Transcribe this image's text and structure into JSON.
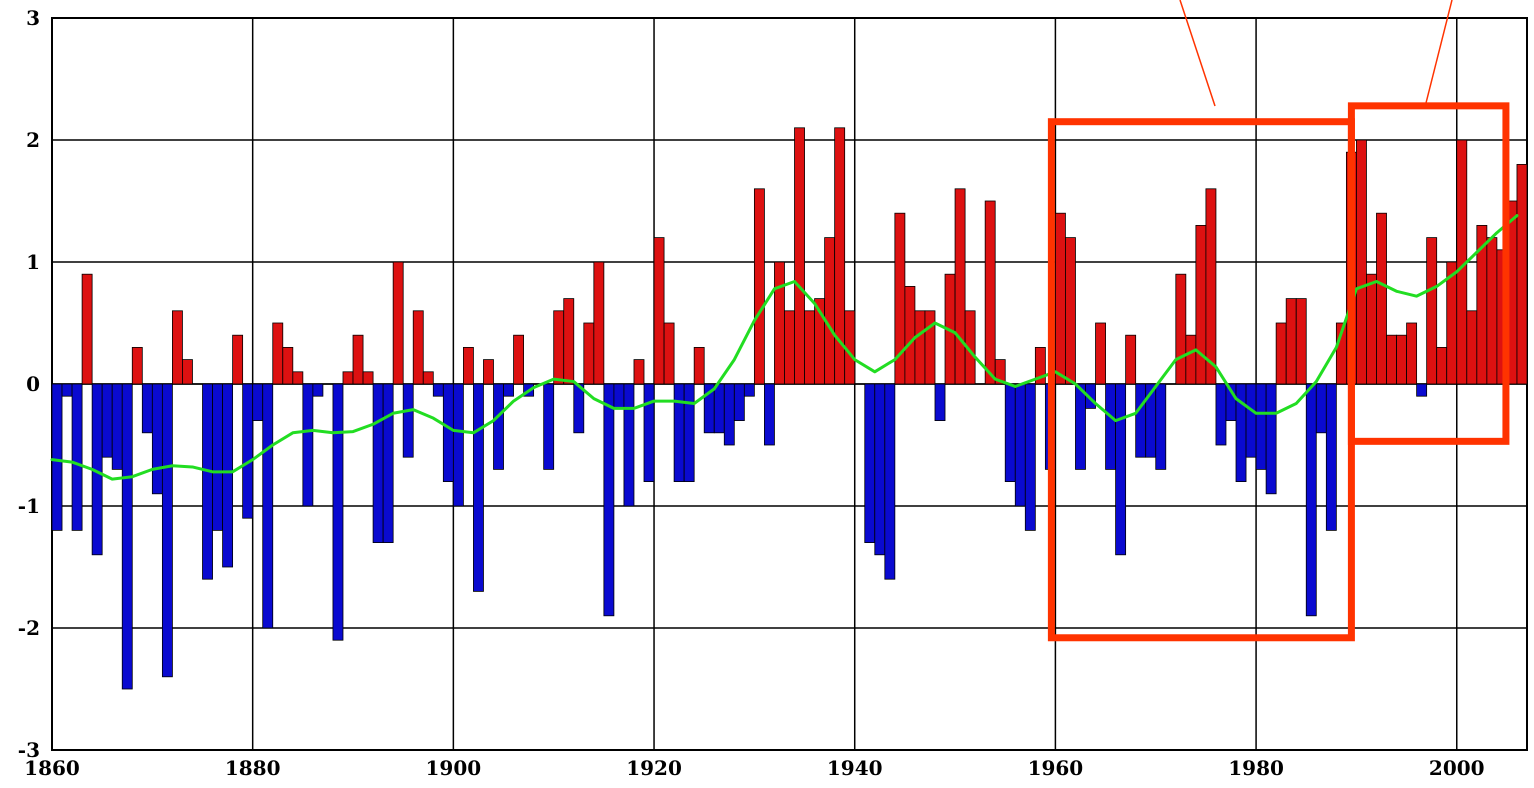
{
  "chart_data": {
    "type": "bar",
    "title": "",
    "xlabel": "",
    "ylabel": "",
    "xlim": [
      1860,
      2007
    ],
    "ylim": [
      -3,
      3
    ],
    "grid": true,
    "x_ticks": [
      "1860",
      "1880",
      "1900",
      "1920",
      "1940",
      "1960",
      "1980",
      "2000"
    ],
    "y_ticks": [
      "-3",
      "-2",
      "-1",
      "0",
      "1",
      "2",
      "3"
    ],
    "colors": {
      "positive": "#dd1111",
      "negative": "#0a0ad0",
      "smooth": "#22dd22",
      "highlight": "#ff3300",
      "grid": "#000000"
    },
    "x": [
      1860,
      1861,
      1862,
      1863,
      1864,
      1865,
      1866,
      1867,
      1868,
      1869,
      1870,
      1871,
      1872,
      1873,
      1874,
      1875,
      1876,
      1877,
      1878,
      1879,
      1880,
      1881,
      1882,
      1883,
      1884,
      1885,
      1886,
      1887,
      1888,
      1889,
      1890,
      1891,
      1892,
      1893,
      1894,
      1895,
      1896,
      1897,
      1898,
      1899,
      1900,
      1901,
      1902,
      1903,
      1904,
      1905,
      1906,
      1907,
      1908,
      1909,
      1910,
      1911,
      1912,
      1913,
      1914,
      1915,
      1916,
      1917,
      1918,
      1919,
      1920,
      1921,
      1922,
      1923,
      1924,
      1925,
      1926,
      1927,
      1928,
      1929,
      1930,
      1931,
      1932,
      1933,
      1934,
      1935,
      1936,
      1937,
      1938,
      1939,
      1940,
      1941,
      1942,
      1943,
      1944,
      1945,
      1946,
      1947,
      1948,
      1949,
      1950,
      1951,
      1952,
      1953,
      1954,
      1955,
      1956,
      1957,
      1958,
      1959,
      1960,
      1961,
      1962,
      1963,
      1964,
      1965,
      1966,
      1967,
      1968,
      1969,
      1970,
      1971,
      1972,
      1973,
      1974,
      1975,
      1976,
      1977,
      1978,
      1979,
      1980,
      1981,
      1982,
      1983,
      1984,
      1985,
      1986,
      1987,
      1988,
      1989,
      1990,
      1991,
      1992,
      1993,
      1994,
      1995,
      1996,
      1997,
      1998,
      1999,
      2000,
      2001,
      2002,
      2003,
      2004,
      2005,
      2006
    ],
    "values": [
      -1.2,
      -0.1,
      -1.2,
      0.9,
      -1.4,
      -0.6,
      -0.7,
      -2.5,
      0.3,
      -0.4,
      -0.9,
      -2.4,
      0.6,
      0.2,
      0.0,
      -1.6,
      -1.2,
      -1.5,
      0.4,
      -1.1,
      -0.3,
      -2.0,
      0.5,
      0.3,
      0.1,
      -1.0,
      -0.1,
      0.0,
      -2.1,
      0.1,
      0.4,
      0.1,
      -1.3,
      -1.3,
      1.0,
      -0.6,
      0.6,
      0.1,
      -0.1,
      -0.8,
      -1.0,
      0.3,
      -1.7,
      0.2,
      -0.7,
      -0.1,
      0.4,
      -0.1,
      0.0,
      -0.7,
      0.6,
      0.7,
      -0.4,
      0.5,
      1.0,
      -1.9,
      -0.2,
      -1.0,
      0.2,
      -0.8,
      1.2,
      0.5,
      -0.8,
      -0.8,
      0.3,
      -0.4,
      -0.4,
      -0.5,
      -0.3,
      -0.1,
      1.6,
      -0.5,
      1.0,
      0.6,
      2.1,
      0.6,
      0.7,
      1.2,
      2.1,
      0.6,
      0.0,
      -1.3,
      -1.4,
      -1.6,
      1.4,
      0.8,
      0.6,
      0.6,
      -0.3,
      0.9,
      1.6,
      0.6,
      0.0,
      1.5,
      0.2,
      -0.8,
      -1.0,
      -1.2,
      0.3,
      -0.7,
      1.4,
      1.2,
      -0.7,
      -0.2,
      0.5,
      -0.7,
      -1.4,
      0.4,
      -0.6,
      -0.6,
      -0.7,
      0.0,
      0.9,
      0.4,
      1.3,
      1.6,
      -0.5,
      -0.3,
      -0.8,
      -0.6,
      -0.7,
      -0.9,
      0.5,
      0.7,
      0.7,
      -1.9,
      -0.4,
      -1.2,
      0.5,
      1.9,
      2.0,
      0.9,
      1.4,
      0.4,
      0.4,
      0.5,
      -0.1,
      1.2,
      0.3,
      1.0,
      2.0,
      0.6,
      1.3,
      1.2,
      1.1,
      1.5,
      1.8
    ],
    "smooth_line": {
      "x": [
        1860,
        1862,
        1864,
        1866,
        1868,
        1870,
        1872,
        1874,
        1876,
        1878,
        1880,
        1882,
        1884,
        1886,
        1888,
        1890,
        1892,
        1894,
        1896,
        1898,
        1900,
        1902,
        1904,
        1906,
        1908,
        1910,
        1912,
        1914,
        1916,
        1918,
        1920,
        1922,
        1924,
        1926,
        1928,
        1930,
        1932,
        1934,
        1936,
        1938,
        1940,
        1942,
        1944,
        1946,
        1948,
        1950,
        1952,
        1954,
        1956,
        1958,
        1960,
        1962,
        1964,
        1966,
        1968,
        1970,
        1972,
        1974,
        1976,
        1978,
        1980,
        1982,
        1984,
        1986,
        1988,
        1990,
        1992,
        1994,
        1996,
        1998,
        2000,
        2002,
        2004,
        2006
      ],
      "y": [
        -0.62,
        -0.64,
        -0.7,
        -0.78,
        -0.76,
        -0.7,
        -0.67,
        -0.68,
        -0.72,
        -0.72,
        -0.62,
        -0.5,
        -0.4,
        -0.38,
        -0.4,
        -0.39,
        -0.33,
        -0.24,
        -0.21,
        -0.28,
        -0.38,
        -0.4,
        -0.3,
        -0.14,
        -0.03,
        0.04,
        0.02,
        -0.12,
        -0.2,
        -0.2,
        -0.14,
        -0.14,
        -0.16,
        -0.04,
        0.2,
        0.52,
        0.78,
        0.84,
        0.66,
        0.4,
        0.2,
        0.1,
        0.2,
        0.38,
        0.5,
        0.42,
        0.22,
        0.04,
        -0.02,
        0.04,
        0.1,
        0.0,
        -0.16,
        -0.3,
        -0.24,
        -0.02,
        0.2,
        0.28,
        0.14,
        -0.12,
        -0.24,
        -0.24,
        -0.16,
        0.02,
        0.3,
        0.78,
        0.84,
        0.76,
        0.72,
        0.8,
        0.92,
        1.08,
        1.24,
        1.38
      ]
    },
    "highlight_boxes": [
      {
        "x_start": 1959.6,
        "x_end": 1989.5,
        "y_top": 2.15,
        "y_bottom": -2.08
      },
      {
        "x_start": 1989.5,
        "x_end": 2004.9,
        "y_top": 2.28,
        "y_bottom": -0.47
      }
    ]
  }
}
